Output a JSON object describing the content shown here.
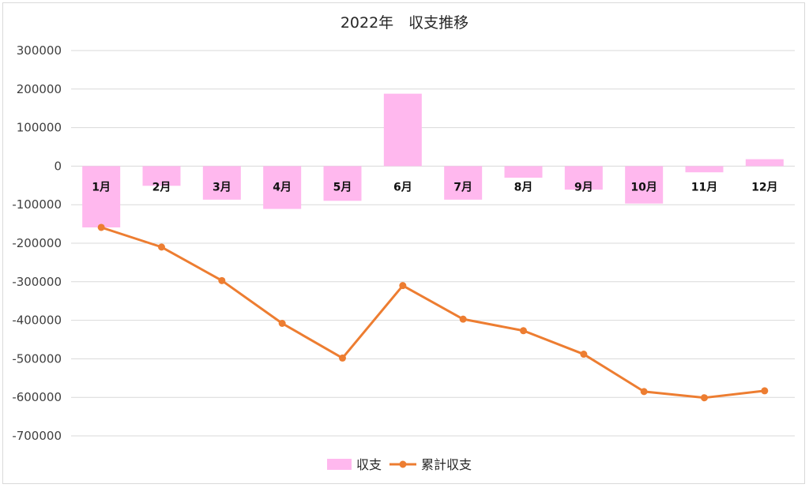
{
  "chart_data": {
    "type": "bar",
    "title": "2022年　収支推移",
    "categories": [
      "1月",
      "2月",
      "3月",
      "4月",
      "5月",
      "6月",
      "7月",
      "8月",
      "9月",
      "10月",
      "11月",
      "12月"
    ],
    "series": [
      {
        "name": "収支",
        "type": "bar",
        "color": "#ffb8ee",
        "values": [
          -159000,
          -51000,
          -87000,
          -111000,
          -90000,
          188000,
          -87000,
          -30000,
          -61000,
          -97000,
          -16000,
          18000
        ]
      },
      {
        "name": "累計収支",
        "type": "line",
        "color": "#ed7d31",
        "values": [
          -159000,
          -210000,
          -297000,
          -408000,
          -498000,
          -310000,
          -397000,
          -427000,
          -488000,
          -585000,
          -601000,
          -583000
        ]
      }
    ],
    "yticks": [
      "300000",
      "200000",
      "100000",
      "0",
      "-100000",
      "-200000",
      "-300000",
      "-400000",
      "-500000",
      "-600000",
      "-700000"
    ],
    "ylim": [
      -700000,
      300000
    ],
    "xlabel": "",
    "ylabel": "",
    "grid": true,
    "legend_position": "bottom"
  }
}
